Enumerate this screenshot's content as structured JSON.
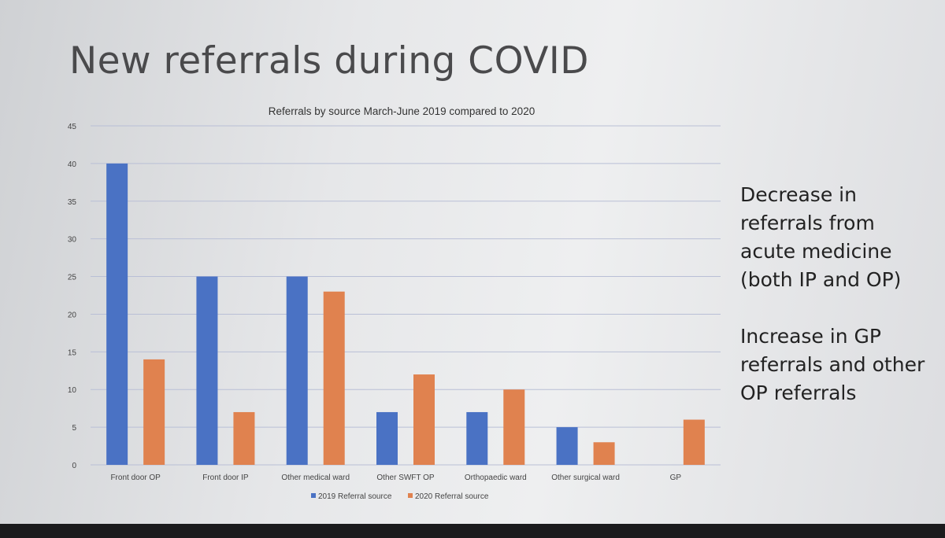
{
  "slide": {
    "title": "New referrals during COVID",
    "notes": [
      "Decrease in referrals from acute medicine (both IP and OP)",
      "Increase in GP referrals and other OP referrals"
    ]
  },
  "colors": {
    "series_2019": "#4a72c4",
    "series_2020": "#e0824f",
    "grid": "#b9bfd6",
    "text": "#333333"
  },
  "chart_data": {
    "type": "bar",
    "title": "Referrals by source March-June 2019 compared to 2020",
    "xlabel": "",
    "ylabel": "",
    "ylim": [
      0,
      45
    ],
    "yticks": [
      0,
      5,
      10,
      15,
      20,
      25,
      30,
      35,
      40,
      45
    ],
    "categories": [
      "Front door OP",
      "Front door IP",
      "Other medical ward",
      "Other SWFT OP",
      "Orthopaedic ward",
      "Other surgical ward",
      "GP"
    ],
    "series": [
      {
        "name": "2019 Referral source",
        "values": [
          40,
          25,
          25,
          7,
          7,
          5,
          0
        ]
      },
      {
        "name": "2020 Referral source",
        "values": [
          14,
          7,
          23,
          12,
          10,
          3,
          6
        ]
      }
    ],
    "legend_position": "bottom",
    "grid": true
  }
}
